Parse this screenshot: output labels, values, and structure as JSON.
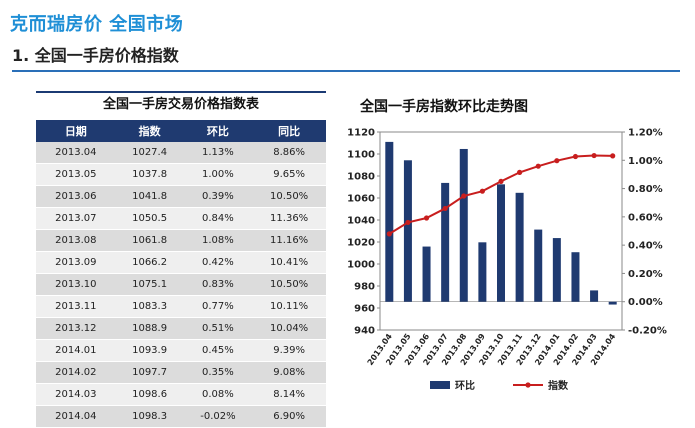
{
  "header": {
    "title": "克而瑞房价 全国市场",
    "subtitle": "1. 全国一手房价格指数"
  },
  "table": {
    "title": "全国一手房交易价格指数表",
    "columns": [
      "日期",
      "指数",
      "环比",
      "同比"
    ],
    "rows": [
      [
        "2013.04",
        "1027.4",
        "1.13%",
        "8.86%"
      ],
      [
        "2013.05",
        "1037.8",
        "1.00%",
        "9.65%"
      ],
      [
        "2013.06",
        "1041.8",
        "0.39%",
        "10.50%"
      ],
      [
        "2013.07",
        "1050.5",
        "0.84%",
        "11.36%"
      ],
      [
        "2013.08",
        "1061.8",
        "1.08%",
        "11.16%"
      ],
      [
        "2013.09",
        "1066.2",
        "0.42%",
        "10.41%"
      ],
      [
        "2013.10",
        "1075.1",
        "0.83%",
        "10.50%"
      ],
      [
        "2013.11",
        "1083.3",
        "0.77%",
        "10.11%"
      ],
      [
        "2013.12",
        "1088.9",
        "0.51%",
        "10.04%"
      ],
      [
        "2014.01",
        "1093.9",
        "0.45%",
        "9.39%"
      ],
      [
        "2014.02",
        "1097.7",
        "0.35%",
        "9.08%"
      ],
      [
        "2014.03",
        "1098.6",
        "0.08%",
        "8.14%"
      ],
      [
        "2014.04",
        "1098.3",
        "-0.02%",
        "6.90%"
      ]
    ]
  },
  "chart_data": {
    "type": "bar",
    "title": "全国一手房指数环比走势图",
    "categories": [
      "2013.04",
      "2013.05",
      "2013.06",
      "2013.07",
      "2013.08",
      "2013.09",
      "2013.10",
      "2013.11",
      "2013.12",
      "2014.01",
      "2014.02",
      "2014.03",
      "2014.04"
    ],
    "series": [
      {
        "name": "环比",
        "type": "bar",
        "axis": "right",
        "color": "#1f3a70",
        "values": [
          1.13,
          1.0,
          0.39,
          0.84,
          1.08,
          0.42,
          0.83,
          0.77,
          0.51,
          0.45,
          0.35,
          0.08,
          -0.02
        ]
      },
      {
        "name": "指数",
        "type": "line",
        "axis": "left",
        "color": "#c81e1e",
        "values": [
          1027.4,
          1037.8,
          1041.8,
          1050.5,
          1061.8,
          1066.2,
          1075.1,
          1083.3,
          1088.9,
          1093.9,
          1097.7,
          1098.6,
          1098.3
        ]
      }
    ],
    "y_left": {
      "min": 940,
      "max": 1120,
      "ticks": [
        "940",
        "960",
        "980",
        "1000",
        "1020",
        "1040",
        "1060",
        "1080",
        "1100",
        "1120"
      ]
    },
    "y_right": {
      "min": -0.2,
      "max": 1.2,
      "ticks": [
        "-0.20%",
        "0.00%",
        "0.20%",
        "0.40%",
        "0.60%",
        "0.80%",
        "1.00%",
        "1.20%"
      ]
    },
    "legend_position": "bottom",
    "grid": false
  }
}
